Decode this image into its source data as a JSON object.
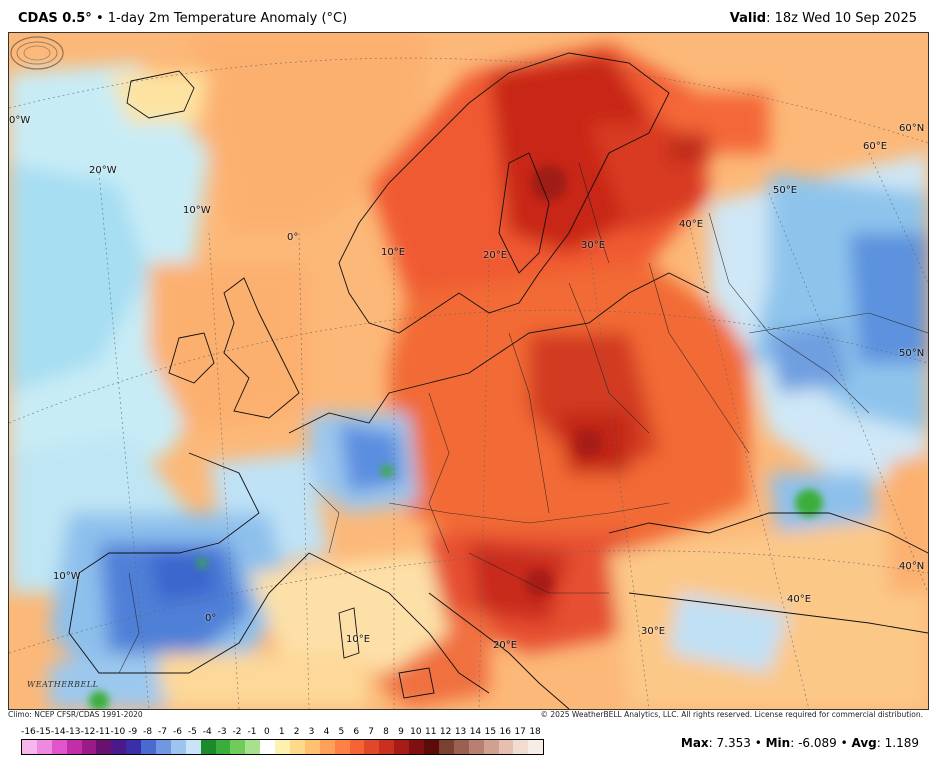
{
  "header": {
    "product": "CDAS 0.5°",
    "separator": "•",
    "title": "1-day 2m Temperature Anomaly (°C)",
    "valid_label": "Valid",
    "valid_time": ": 18z Wed 10 Sep 2025"
  },
  "map": {
    "coordinate_labels": [
      {
        "text": "0°W"
      },
      {
        "text": "20°W"
      },
      {
        "text": "10°W"
      },
      {
        "text": "0°"
      },
      {
        "text": "10°E"
      },
      {
        "text": "20°E"
      },
      {
        "text": "30°E"
      },
      {
        "text": "40°E"
      },
      {
        "text": "50°E"
      },
      {
        "text": "60°E"
      },
      {
        "text": "60°N"
      },
      {
        "text": "50°N"
      },
      {
        "text": "40°N"
      },
      {
        "text": "10°W"
      },
      {
        "text": "0°"
      },
      {
        "text": "10°E"
      },
      {
        "text": "20°E"
      },
      {
        "text": "30°E"
      },
      {
        "text": "40°E"
      }
    ],
    "logo_text": "WEATHERBELL"
  },
  "footer": {
    "climo": "Climo: NCEP CFSR/CDAS 1991-2020",
    "copyright": "© 2025 WeatherBELL Analytics, LLC. All rights reserved. License required for commercial distribution."
  },
  "colorscale": {
    "labels": [
      "-16",
      "-15",
      "-14",
      "-13",
      "-12",
      "-11",
      "-10",
      "-9",
      "-8",
      "-7",
      "-6",
      "-5",
      "-4",
      "-3",
      "-2",
      "-1",
      "0",
      "1",
      "2",
      "3",
      "4",
      "5",
      "6",
      "7",
      "8",
      "9",
      "10",
      "11",
      "12",
      "13",
      "14",
      "15",
      "16",
      "17",
      "18"
    ],
    "colors": [
      "#f7b6ee",
      "#ee88e0",
      "#e055cc",
      "#c22ea8",
      "#9a1a88",
      "#6a1070",
      "#4b1a8a",
      "#3a2fa8",
      "#4a6ad0",
      "#6f98e0",
      "#9cc4ef",
      "#c9e3f7",
      "#1a8a2a",
      "#3aae3a",
      "#6fcc5a",
      "#a6e28c",
      "#ffffff",
      "#fff2b0",
      "#ffd98a",
      "#ffc070",
      "#ffa058",
      "#ff8045",
      "#f56435",
      "#e0482a",
      "#c83020",
      "#a81c18",
      "#801010",
      "#5c0a0a",
      "#7a4030",
      "#9a6050",
      "#b88070",
      "#d0a090",
      "#e5c0b0",
      "#f0dcd0",
      "#f8ece6"
    ]
  },
  "stats": {
    "max_label": "Max",
    "max_value": ": 7.353",
    "min_label": "Min",
    "min_value": ": -6.089",
    "avg_label": "Avg",
    "avg_value": ": 1.189",
    "bullet": "•"
  }
}
